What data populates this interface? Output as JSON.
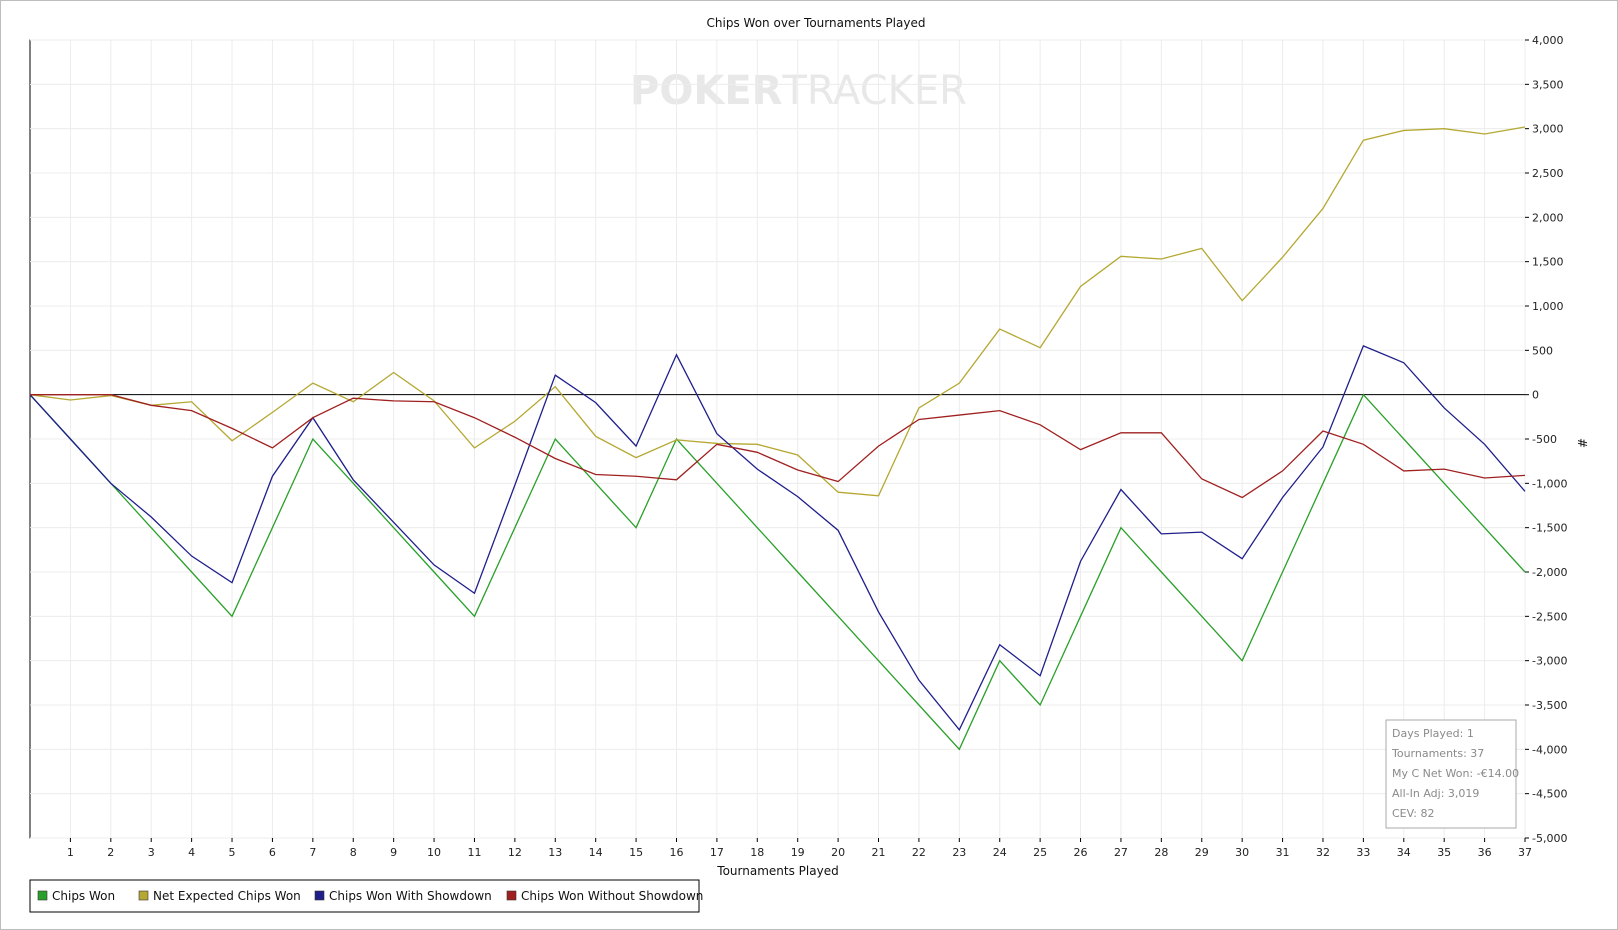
{
  "chart_data": {
    "type": "line",
    "title": "Chips Won over Tournaments Played",
    "xlabel": "Tournaments Played",
    "ylabel": "#",
    "x": [
      0,
      1,
      2,
      3,
      4,
      5,
      6,
      7,
      8,
      9,
      10,
      11,
      12,
      13,
      14,
      15,
      16,
      17,
      18,
      19,
      20,
      21,
      22,
      23,
      24,
      25,
      26,
      27,
      28,
      29,
      30,
      31,
      32,
      33,
      34,
      35,
      36,
      37
    ],
    "xlim": [
      0,
      37
    ],
    "ylim": [
      -5000,
      4000
    ],
    "y_ticks": [
      4000,
      3500,
      3000,
      2500,
      2000,
      1500,
      1000,
      500,
      0,
      -500,
      -1000,
      -1500,
      -2000,
      -2500,
      -3000,
      -3500,
      -4000,
      -4500,
      -5000
    ],
    "y_tick_labels": [
      "4,000",
      "3,500",
      "3,000",
      "2,500",
      "2,000",
      "1,500",
      "1,000",
      "500",
      "0",
      "-500",
      "-1,000",
      "-1,500",
      "-2,000",
      "-2,500",
      "-3,000",
      "-3,500",
      "-4,000",
      "-4,500",
      "-5,000"
    ],
    "x_tick_labels": [
      "1",
      "2",
      "3",
      "4",
      "5",
      "6",
      "7",
      "8",
      "9",
      "10",
      "11",
      "12",
      "13",
      "14",
      "15",
      "16",
      "17",
      "18",
      "19",
      "20",
      "21",
      "22",
      "23",
      "24",
      "25",
      "26",
      "27",
      "28",
      "29",
      "30",
      "31",
      "32",
      "33",
      "34",
      "35",
      "36",
      "37"
    ],
    "grid": true,
    "y_axis_position": "right",
    "legend_position": "bottom-left",
    "series": [
      {
        "name": "Chips Won",
        "color": "#2aa02a",
        "values": [
          0,
          -500,
          -1000,
          -1500,
          -2000,
          -2500,
          -1500,
          -500,
          -1000,
          -1500,
          -2000,
          -2500,
          -1500,
          -500,
          -1000,
          -1500,
          -500,
          -1000,
          -1500,
          -2000,
          -2500,
          -3000,
          -3500,
          -4000,
          -3000,
          -3500,
          -2500,
          -1500,
          -2000,
          -2500,
          -3000,
          -2000,
          -1000,
          0,
          -500,
          -1000,
          -1500,
          -2000
        ]
      },
      {
        "name": "Net Expected Chips Won",
        "color": "#b5a832",
        "values": [
          0,
          -60,
          -10,
          -120,
          -80,
          -520,
          -200,
          130,
          -80,
          250,
          -70,
          -600,
          -300,
          90,
          -470,
          -710,
          -510,
          -550,
          -560,
          -680,
          -1100,
          -1140,
          -150,
          130,
          740,
          530,
          1220,
          1560,
          1530,
          1650,
          1060,
          1550,
          2100,
          2870,
          2980,
          3000,
          2940,
          3019
        ]
      },
      {
        "name": "Chips Won With Showdown",
        "color": "#1f1f8c",
        "values": [
          0,
          -500,
          -1000,
          -1380,
          -1820,
          -2120,
          -920,
          -260,
          -960,
          -1440,
          -1920,
          -2240,
          -1020,
          220,
          -90,
          -580,
          450,
          -440,
          -840,
          -1150,
          -1530,
          -2450,
          -3220,
          -3780,
          -2820,
          -3170,
          -1880,
          -1070,
          -1570,
          -1550,
          -1850,
          -1160,
          -590,
          550,
          360,
          -150,
          -560,
          -1090
        ]
      },
      {
        "name": "Chips Won Without Showdown",
        "color": "#a02020",
        "values": [
          0,
          0,
          0,
          -120,
          -180,
          -380,
          -600,
          -260,
          -40,
          -70,
          -80,
          -260,
          -480,
          -720,
          -900,
          -920,
          -960,
          -560,
          -650,
          -850,
          -980,
          -580,
          -280,
          -230,
          -180,
          -340,
          -620,
          -430,
          -430,
          -950,
          -1160,
          -860,
          -410,
          -560,
          -860,
          -840,
          -940,
          -910
        ]
      }
    ],
    "annotations": [
      "Days Played: 1",
      "Tournaments: 37",
      "My C Net Won: -€14.00",
      "All-In Adj: 3,019",
      "CEV: 82"
    ]
  },
  "watermark": {
    "left": "POKER",
    "right": "TRACKER"
  }
}
